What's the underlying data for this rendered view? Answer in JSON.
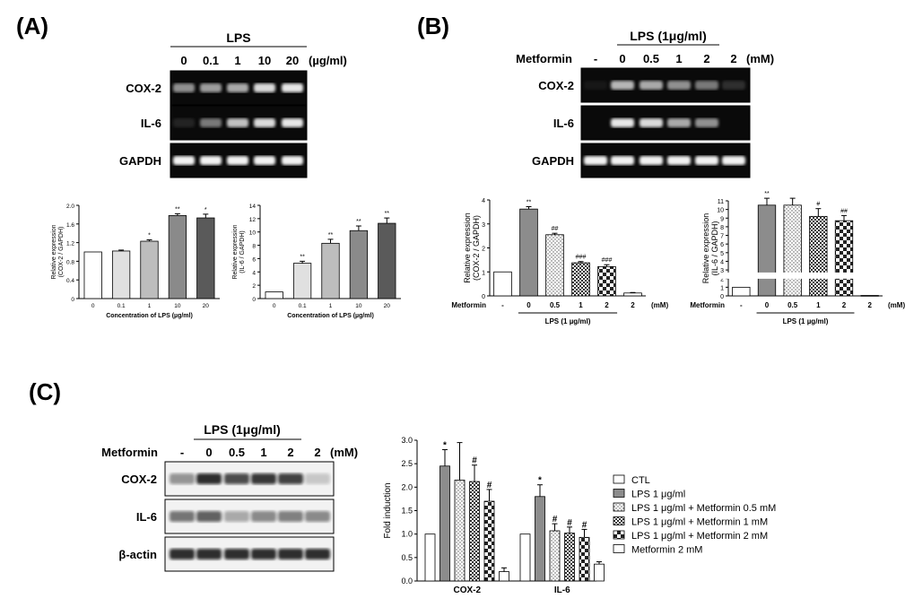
{
  "panels": {
    "A": "(A)",
    "B": "(B)",
    "C": "(C)"
  },
  "blotA": {
    "treatment_label": "LPS",
    "lane_labels": [
      "0",
      "0.1",
      "1",
      "10",
      "20"
    ],
    "unit": "(µg/ml)",
    "rows": [
      "COX-2",
      "IL-6",
      "GAPDH"
    ],
    "intensity": [
      [
        0.55,
        0.6,
        0.65,
        0.85,
        0.9
      ],
      [
        0.1,
        0.45,
        0.75,
        0.85,
        0.9
      ],
      [
        0.95,
        0.95,
        0.95,
        0.95,
        0.95
      ]
    ]
  },
  "blotB": {
    "treatment_label": "LPS (1μg/ml)",
    "metformin_label": "Metformin",
    "lane_labels": [
      "-",
      "0",
      "0.5",
      "1",
      "2",
      "2"
    ],
    "unit": "(mM)",
    "rows": [
      "COX-2",
      "IL-6",
      "GAPDH"
    ],
    "intensity": [
      [
        0.05,
        0.7,
        0.65,
        0.55,
        0.45,
        0.15
      ],
      [
        0.0,
        0.9,
        0.85,
        0.65,
        0.55,
        0.0
      ],
      [
        0.95,
        0.95,
        0.95,
        0.95,
        0.95,
        0.95
      ]
    ]
  },
  "blotC": {
    "treatment_label": "LPS (1μg/ml)",
    "metformin_label": "Metformin",
    "lane_labels": [
      "-",
      "0",
      "0.5",
      "1",
      "2",
      "2"
    ],
    "unit": "(mM)",
    "rows": [
      "COX-2",
      "IL-6",
      "β-actin"
    ],
    "intensity": [
      [
        0.45,
        0.95,
        0.8,
        0.9,
        0.85,
        0.2
      ],
      [
        0.6,
        0.7,
        0.35,
        0.5,
        0.55,
        0.5
      ],
      [
        0.95,
        0.95,
        0.95,
        0.95,
        0.95,
        0.95
      ]
    ]
  },
  "chart_data": [
    {
      "type": "bar",
      "ylabel": "Relative expression\n(COX-2 / GAPDH)",
      "xlabel": "Concentration of LPS (µg/ml)",
      "categories": [
        "0",
        "0.1",
        "1",
        "10",
        "20"
      ],
      "values": [
        1.0,
        1.02,
        1.23,
        1.78,
        1.73
      ],
      "errors": [
        0,
        0.02,
        0.03,
        0.04,
        0.08
      ],
      "annotations": [
        "",
        "",
        "*",
        "**",
        "*"
      ],
      "ylim": [
        0,
        2.0
      ],
      "yticks": [
        "0",
        "0.4",
        "0.8",
        "1.2",
        "1.6",
        "2.0"
      ],
      "fills": [
        "#ffffff",
        "#e0e0e0",
        "#bdbdbd",
        "#8a8a8a",
        "#5a5a5a"
      ]
    },
    {
      "type": "bar",
      "ylabel": "Relative expression\n(IL-6 / GAPDH)",
      "xlabel": "Concentration of LPS (µg/ml)",
      "categories": [
        "0",
        "0.1",
        "1",
        "10",
        "20"
      ],
      "values": [
        1.0,
        5.3,
        8.3,
        10.2,
        11.3
      ],
      "errors": [
        0,
        0.3,
        0.6,
        0.7,
        0.8
      ],
      "annotations": [
        "",
        "**",
        "**",
        "**",
        "**"
      ],
      "ylim": [
        0,
        14
      ],
      "yticks": [
        "0",
        "2",
        "4",
        "6",
        "8",
        "10",
        "12",
        "14"
      ],
      "fills": [
        "#ffffff",
        "#e0e0e0",
        "#bdbdbd",
        "#8a8a8a",
        "#5a5a5a"
      ]
    },
    {
      "type": "bar",
      "ylabel": "Relative expression\n(COX-2 / GAPDH)",
      "x_row_label": "Metformin",
      "x_unit": "(mM)",
      "group_label": "LPS (1 µg/ml)",
      "categories": [
        "-",
        "0",
        "0.5",
        "1",
        "2",
        "2"
      ],
      "values": [
        1.0,
        3.62,
        2.55,
        1.38,
        1.22,
        0.12
      ],
      "errors": [
        0,
        0.1,
        0.06,
        0.05,
        0.08,
        0.02
      ],
      "annotations": [
        "",
        "**",
        "##",
        "###",
        "###",
        ""
      ],
      "ylim": [
        0,
        4
      ],
      "yticks": [
        "0",
        "1",
        "2",
        "3",
        "4"
      ],
      "patterns": [
        "white",
        "gray",
        "dots",
        "grid",
        "check",
        "white"
      ]
    },
    {
      "type": "bar",
      "ylabel": "Relative expression\n(IL-6 / GAPDH)",
      "x_row_label": "Metformin",
      "x_unit": "(mM)",
      "group_label": "LPS (1 µg/ml)",
      "categories": [
        "-",
        "0",
        "0.5",
        "1",
        "2",
        "2"
      ],
      "values": [
        1.0,
        10.5,
        10.5,
        9.2,
        8.7,
        0.05
      ],
      "errors": [
        0,
        0.8,
        0.8,
        0.9,
        0.6,
        0.0
      ],
      "annotations": [
        "",
        "**",
        "",
        "#",
        "##",
        ""
      ],
      "ylim": [
        0,
        11
      ],
      "yticks": [
        "0",
        "1",
        "2",
        "3",
        "4",
        "5",
        "6",
        "7",
        "8",
        "9",
        "10",
        "11"
      ],
      "patterns": [
        "white",
        "gray",
        "dots",
        "grid",
        "check",
        "white"
      ]
    },
    {
      "type": "bar",
      "ylabel": "Fold induction",
      "categories": [
        "COX-2",
        "IL-6"
      ],
      "ylim": [
        0,
        3.0
      ],
      "yticks": [
        "0.0",
        "0.5",
        "1.0",
        "1.5",
        "2.0",
        "2.5",
        "3.0"
      ],
      "series": [
        {
          "name": "CTL",
          "values": [
            1.0,
            1.0
          ],
          "errors": [
            0,
            0
          ],
          "annotations": [
            "",
            ""
          ],
          "pattern": "white"
        },
        {
          "name": "LPS 1 μg/ml",
          "values": [
            2.45,
            1.8
          ],
          "errors": [
            0.35,
            0.25
          ],
          "annotations": [
            "*",
            "*"
          ],
          "pattern": "gray"
        },
        {
          "name": "LPS 1 μg/ml + Metformin 0.5 mM",
          "values": [
            2.15,
            1.07
          ],
          "errors": [
            0.8,
            0.15
          ],
          "annotations": [
            "",
            "#"
          ],
          "pattern": "dots"
        },
        {
          "name": "LPS 1 μg/ml + Metformin 1 mM",
          "values": [
            2.12,
            1.02
          ],
          "errors": [
            0.35,
            0.13
          ],
          "annotations": [
            "#",
            "#"
          ],
          "pattern": "grid"
        },
        {
          "name": "LPS 1 μg/ml + Metformin 2 mM",
          "values": [
            1.7,
            0.93
          ],
          "errors": [
            0.25,
            0.17
          ],
          "annotations": [
            "#",
            "#"
          ],
          "pattern": "check"
        },
        {
          "name": "Metformin 2 mM",
          "values": [
            0.2,
            0.36
          ],
          "errors": [
            0.08,
            0.05
          ],
          "annotations": [
            "",
            ""
          ],
          "pattern": "white"
        }
      ],
      "legend": "right"
    }
  ]
}
